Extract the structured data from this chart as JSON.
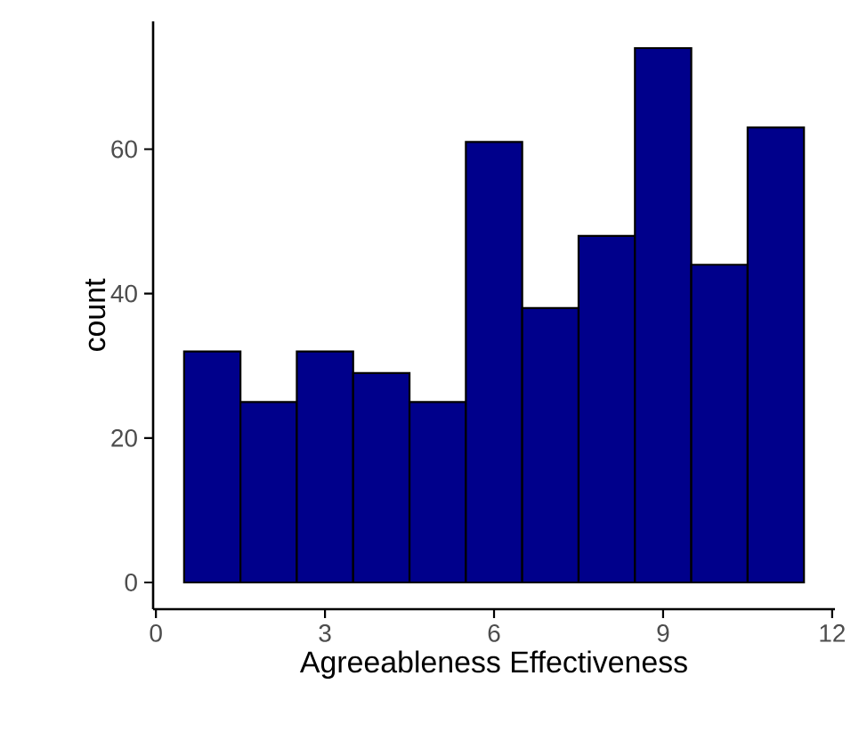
{
  "chart_data": {
    "type": "histogram",
    "xlabel": "Agreeableness Effectiveness",
    "ylabel": "count",
    "bins": [
      0.5,
      1.5,
      2.5,
      3.5,
      4.5,
      5.5,
      6.5,
      7.5,
      8.5,
      9.5,
      10.5,
      11.5
    ],
    "values": [
      32,
      25,
      32,
      29,
      25,
      61,
      38,
      48,
      74,
      44,
      63
    ],
    "color": "#00008b",
    "xlim": [
      -0.05,
      12.05
    ],
    "ylim": [
      -3.7,
      77.7
    ],
    "xticks": [
      0,
      3,
      6,
      9,
      12
    ],
    "yticks": [
      0,
      20,
      40,
      60
    ]
  }
}
